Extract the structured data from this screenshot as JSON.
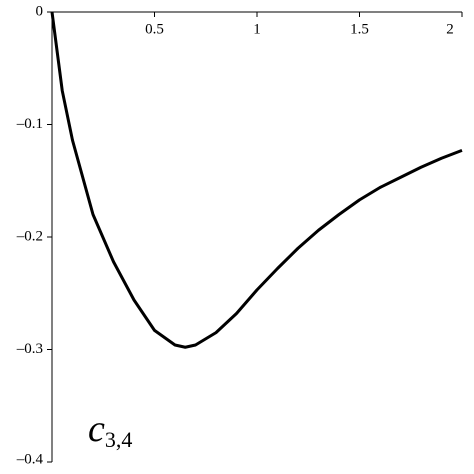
{
  "chart_data": {
    "type": "line",
    "annotation": {
      "text": "c",
      "subscript": "3,4"
    },
    "x": [
      0,
      0.05,
      0.1,
      0.2,
      0.3,
      0.4,
      0.5,
      0.6,
      0.65,
      0.7,
      0.8,
      0.9,
      1.0,
      1.1,
      1.2,
      1.3,
      1.4,
      1.5,
      1.6,
      1.7,
      1.8,
      1.9,
      2.0
    ],
    "series": [
      {
        "color": "#000000",
        "values": [
          0,
          -0.07,
          -0.114,
          -0.18,
          -0.222,
          -0.256,
          -0.283,
          -0.296,
          -0.298,
          -0.296,
          -0.285,
          -0.268,
          -0.247,
          -0.228,
          -0.21,
          -0.194,
          -0.18,
          -0.167,
          -0.156,
          -0.147,
          -0.138,
          -0.13,
          -0.123
        ]
      }
    ],
    "xlim": [
      0,
      2
    ],
    "ylim": [
      -0.4,
      0
    ],
    "xticks": [
      0.5,
      1,
      1.5,
      2
    ],
    "yticks": [
      0,
      {
        "value": -0.1,
        "label": "–0.1"
      },
      {
        "value": -0.2,
        "label": "–0.2"
      },
      {
        "value": -0.3,
        "label": "–0.3"
      },
      {
        "value": -0.4,
        "label": "–0.4"
      }
    ],
    "grid": false
  }
}
